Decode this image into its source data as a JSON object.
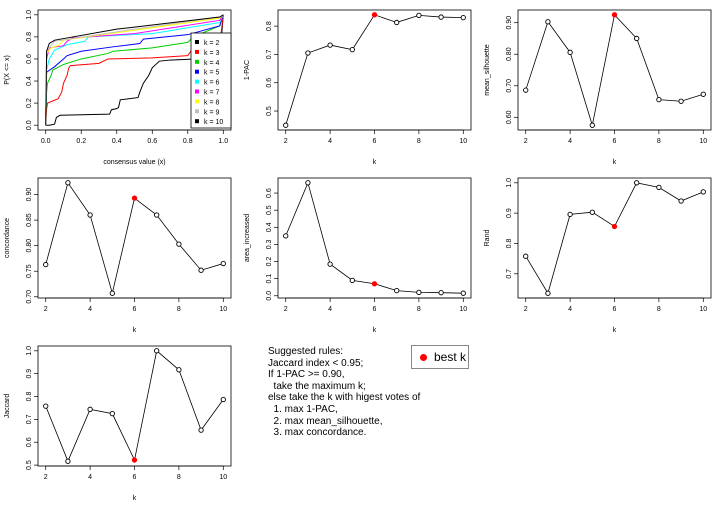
{
  "best_k_color": "#ff0000",
  "rules": {
    "lines": [
      "Suggested rules:",
      "Jaccard index < 0.95;",
      "If 1-PAC >= 0.90,",
      "  take the maximum k;",
      "else take the k with higest votes of",
      "  1. max 1-PAC,",
      "  2. max mean_silhouette,",
      "  3. max concordance."
    ],
    "legend_label": "best k"
  },
  "chart_data": [
    {
      "type": "line",
      "xlabel": "consensus value (x)",
      "ylabel": "P(X <= x)",
      "xlim": [
        0,
        1
      ],
      "ylim": [
        0,
        1
      ],
      "xticks": [
        "0.0",
        "0.2",
        "0.4",
        "0.6",
        "0.8",
        "1.0"
      ],
      "yticks": [
        "0.0",
        "0.2",
        "0.4",
        "0.6",
        "0.8",
        "1.0"
      ],
      "legend_position": "right",
      "series": [
        {
          "name": "k = 2",
          "color": "#000000",
          "points": [
            [
              0,
              0
            ],
            [
              0.02,
              0
            ],
            [
              0.05,
              0.01
            ],
            [
              0.06,
              0.07
            ],
            [
              0.08,
              0.09
            ],
            [
              0.36,
              0.1
            ],
            [
              0.37,
              0.14
            ],
            [
              0.4,
              0.15
            ],
            [
              0.41,
              0.16
            ],
            [
              0.42,
              0.23
            ],
            [
              0.52,
              0.25
            ],
            [
              0.53,
              0.3
            ],
            [
              0.55,
              0.38
            ],
            [
              0.58,
              0.45
            ],
            [
              0.6,
              0.52
            ],
            [
              0.64,
              0.58
            ],
            [
              0.7,
              0.59
            ],
            [
              0.98,
              0.61
            ],
            [
              1,
              1
            ]
          ]
        },
        {
          "name": "k = 3",
          "color": "#ff0000",
          "points": [
            [
              0,
              0
            ],
            [
              0.005,
              0.15
            ],
            [
              0.01,
              0.2
            ],
            [
              0.07,
              0.24
            ],
            [
              0.09,
              0.3
            ],
            [
              0.1,
              0.38
            ],
            [
              0.12,
              0.45
            ],
            [
              0.13,
              0.52
            ],
            [
              0.14,
              0.54
            ],
            [
              0.3,
              0.56
            ],
            [
              0.35,
              0.6
            ],
            [
              0.6,
              0.61
            ],
            [
              0.8,
              0.63
            ],
            [
              0.83,
              0.7
            ],
            [
              0.98,
              0.73
            ],
            [
              1,
              1
            ]
          ]
        },
        {
          "name": "k = 4",
          "color": "#00cd00",
          "points": [
            [
              0,
              0
            ],
            [
              0.005,
              0.3
            ],
            [
              0.01,
              0.38
            ],
            [
              0.03,
              0.45
            ],
            [
              0.04,
              0.5
            ],
            [
              0.1,
              0.55
            ],
            [
              0.2,
              0.6
            ],
            [
              0.35,
              0.65
            ],
            [
              0.38,
              0.67
            ],
            [
              0.6,
              0.7
            ],
            [
              0.8,
              0.75
            ],
            [
              0.83,
              0.8
            ],
            [
              0.98,
              0.9
            ],
            [
              1,
              1
            ]
          ]
        },
        {
          "name": "k = 5",
          "color": "#0000ff",
          "points": [
            [
              0,
              0
            ],
            [
              0.005,
              0.48
            ],
            [
              0.05,
              0.53
            ],
            [
              0.1,
              0.6
            ],
            [
              0.12,
              0.63
            ],
            [
              0.2,
              0.67
            ],
            [
              0.38,
              0.71
            ],
            [
              0.53,
              0.74
            ],
            [
              0.55,
              0.78
            ],
            [
              0.8,
              0.82
            ],
            [
              0.98,
              0.9
            ],
            [
              1,
              1
            ]
          ]
        },
        {
          "name": "k = 6",
          "color": "#00ffff",
          "points": [
            [
              0,
              0
            ],
            [
              0.005,
              0.5
            ],
            [
              0.02,
              0.6
            ],
            [
              0.05,
              0.68
            ],
            [
              0.12,
              0.73
            ],
            [
              0.22,
              0.76
            ],
            [
              0.24,
              0.8
            ],
            [
              0.6,
              0.83
            ],
            [
              0.98,
              0.93
            ],
            [
              1,
              1
            ]
          ]
        },
        {
          "name": "k = 7",
          "color": "#ff00ff",
          "points": [
            [
              0,
              0
            ],
            [
              0.005,
              0.6
            ],
            [
              0.02,
              0.7
            ],
            [
              0.1,
              0.72
            ],
            [
              0.12,
              0.76
            ],
            [
              0.15,
              0.79
            ],
            [
              0.5,
              0.83
            ],
            [
              0.98,
              0.95
            ],
            [
              1,
              1
            ]
          ]
        },
        {
          "name": "k = 8",
          "color": "#ffff00",
          "points": [
            [
              0,
              0
            ],
            [
              0.005,
              0.65
            ],
            [
              0.03,
              0.7
            ],
            [
              0.07,
              0.72
            ],
            [
              0.1,
              0.77
            ],
            [
              0.5,
              0.86
            ],
            [
              0.98,
              0.97
            ],
            [
              1,
              1
            ]
          ]
        },
        {
          "name": "k = 9",
          "color": "#bebebe",
          "points": [
            [
              0,
              0
            ],
            [
              0.005,
              0.67
            ],
            [
              0.03,
              0.72
            ],
            [
              0.05,
              0.76
            ],
            [
              0.5,
              0.87
            ],
            [
              0.98,
              0.98
            ],
            [
              1,
              1
            ]
          ]
        },
        {
          "name": "k = 10",
          "color": "#000000",
          "points": [
            [
              0,
              0
            ],
            [
              0.005,
              0.67
            ],
            [
              0.02,
              0.74
            ],
            [
              0.05,
              0.77
            ],
            [
              0.4,
              0.87
            ],
            [
              0.98,
              0.98
            ],
            [
              1,
              1
            ]
          ]
        }
      ]
    },
    {
      "type": "line",
      "xlabel": "k",
      "ylabel": "1-PAC",
      "x": [
        2,
        3,
        4,
        5,
        6,
        7,
        8,
        9,
        10
      ],
      "y": [
        0.45,
        0.705,
        0.733,
        0.717,
        0.84,
        0.813,
        0.838,
        0.832,
        0.83
      ],
      "best_k": 6,
      "xticks": [
        2,
        4,
        6,
        8,
        10
      ],
      "yticks": [
        "0.5",
        "0.6",
        "0.7",
        "0.8"
      ]
    },
    {
      "type": "line",
      "xlabel": "k",
      "ylabel": "mean_silhouette",
      "x": [
        2,
        3,
        4,
        5,
        6,
        7,
        8,
        9,
        10
      ],
      "y": [
        0.686,
        0.903,
        0.806,
        0.575,
        0.925,
        0.85,
        0.656,
        0.651,
        0.673
      ],
      "best_k": 6,
      "xticks": [
        2,
        4,
        6,
        8,
        10
      ],
      "yticks": [
        "0.60",
        "0.70",
        "0.80",
        "0.90"
      ]
    },
    {
      "type": "line",
      "xlabel": "k",
      "ylabel": "concordance",
      "x": [
        2,
        3,
        4,
        5,
        6,
        7,
        8,
        9,
        10
      ],
      "y": [
        0.763,
        0.923,
        0.86,
        0.707,
        0.893,
        0.86,
        0.803,
        0.752,
        0.765
      ],
      "best_k": 6,
      "xticks": [
        2,
        4,
        6,
        8,
        10
      ],
      "yticks": [
        "0.70",
        "0.75",
        "0.80",
        "0.85",
        "0.90"
      ]
    },
    {
      "type": "line",
      "xlabel": "k",
      "ylabel": "area_increased",
      "x": [
        2,
        3,
        4,
        5,
        6,
        7,
        8,
        9,
        10
      ],
      "y": [
        0.35,
        0.66,
        0.185,
        0.09,
        0.07,
        0.03,
        0.02,
        0.018,
        0.015
      ],
      "best_k": 6,
      "xticks": [
        2,
        4,
        6,
        8,
        10
      ],
      "yticks": [
        "0.0",
        "0.1",
        "0.2",
        "0.3",
        "0.4",
        "0.5",
        "0.6"
      ]
    },
    {
      "type": "line",
      "xlabel": "k",
      "ylabel": "Rand",
      "x": [
        2,
        3,
        4,
        5,
        6,
        7,
        8,
        9,
        10
      ],
      "y": [
        0.758,
        0.636,
        0.896,
        0.903,
        0.856,
        1.0,
        0.985,
        0.94,
        0.97
      ],
      "best_k": 6,
      "xticks": [
        2,
        4,
        6,
        8,
        10
      ],
      "yticks": [
        "0.7",
        "0.8",
        "0.9",
        "1.0"
      ]
    },
    {
      "type": "line",
      "xlabel": "k",
      "ylabel": "Jaccard",
      "x": [
        2,
        3,
        4,
        5,
        6,
        7,
        8,
        9,
        10
      ],
      "y": [
        0.758,
        0.517,
        0.744,
        0.725,
        0.522,
        1.0,
        0.917,
        0.653,
        0.787
      ],
      "best_k": 6,
      "xticks": [
        2,
        4,
        6,
        8,
        10
      ],
      "yticks": [
        "0.5",
        "0.6",
        "0.7",
        "0.8",
        "0.9",
        "1.0"
      ]
    }
  ]
}
